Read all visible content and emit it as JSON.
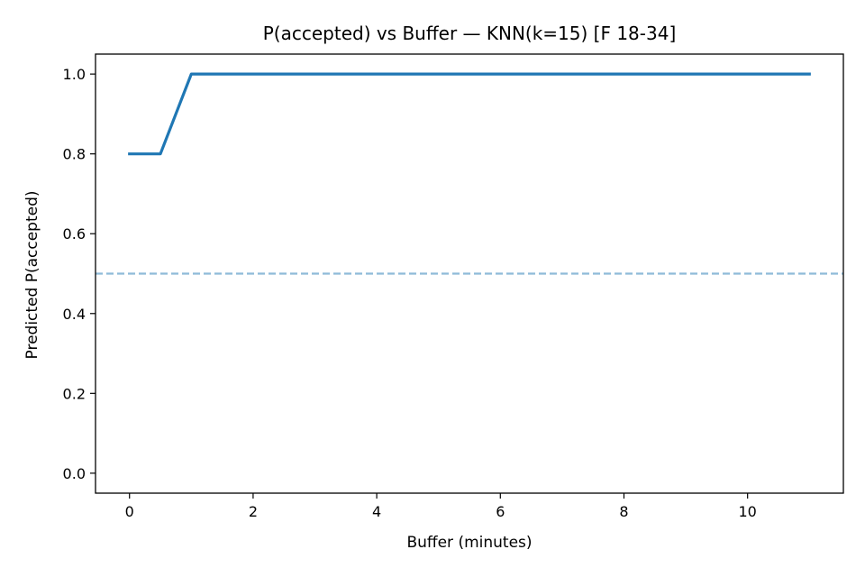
{
  "chart_data": {
    "type": "line",
    "title": "P(accepted) vs Buffer — KNN(k=15) [F 18-34]",
    "xlabel": "Buffer (minutes)",
    "ylabel": "Predicted P(accepted)",
    "xlim": [
      -0.55,
      11.55
    ],
    "ylim": [
      -0.05,
      1.05
    ],
    "xticks": [
      0,
      2,
      4,
      6,
      8,
      10
    ],
    "xtick_labels": [
      "0",
      "2",
      "4",
      "6",
      "8",
      "10"
    ],
    "yticks": [
      0.0,
      0.2,
      0.4,
      0.6,
      0.8,
      1.0
    ],
    "ytick_labels": [
      "0.0",
      "0.2",
      "0.4",
      "0.6",
      "0.8",
      "1.0"
    ],
    "grid": false,
    "series": [
      {
        "x": [
          0,
          0.5,
          1,
          1.5,
          2,
          2.5,
          3,
          3.5,
          4,
          4.5,
          5,
          5.5,
          6,
          6.5,
          7,
          7.5,
          8,
          8.5,
          9,
          9.5,
          10,
          10.5,
          11
        ],
        "values": [
          0.8,
          0.8,
          1.0,
          1.0,
          1.0,
          1.0,
          1.0,
          1.0,
          1.0,
          1.0,
          1.0,
          1.0,
          1.0,
          1.0,
          1.0,
          1.0,
          1.0,
          1.0,
          1.0,
          1.0,
          1.0,
          1.0,
          1.0
        ],
        "color": "#1f77b4",
        "style": "solid"
      }
    ],
    "reference_lines": [
      {
        "axis": "y",
        "value": 0.5,
        "style": "dashed",
        "color": "#1f77b4",
        "opacity": 0.5
      }
    ]
  }
}
